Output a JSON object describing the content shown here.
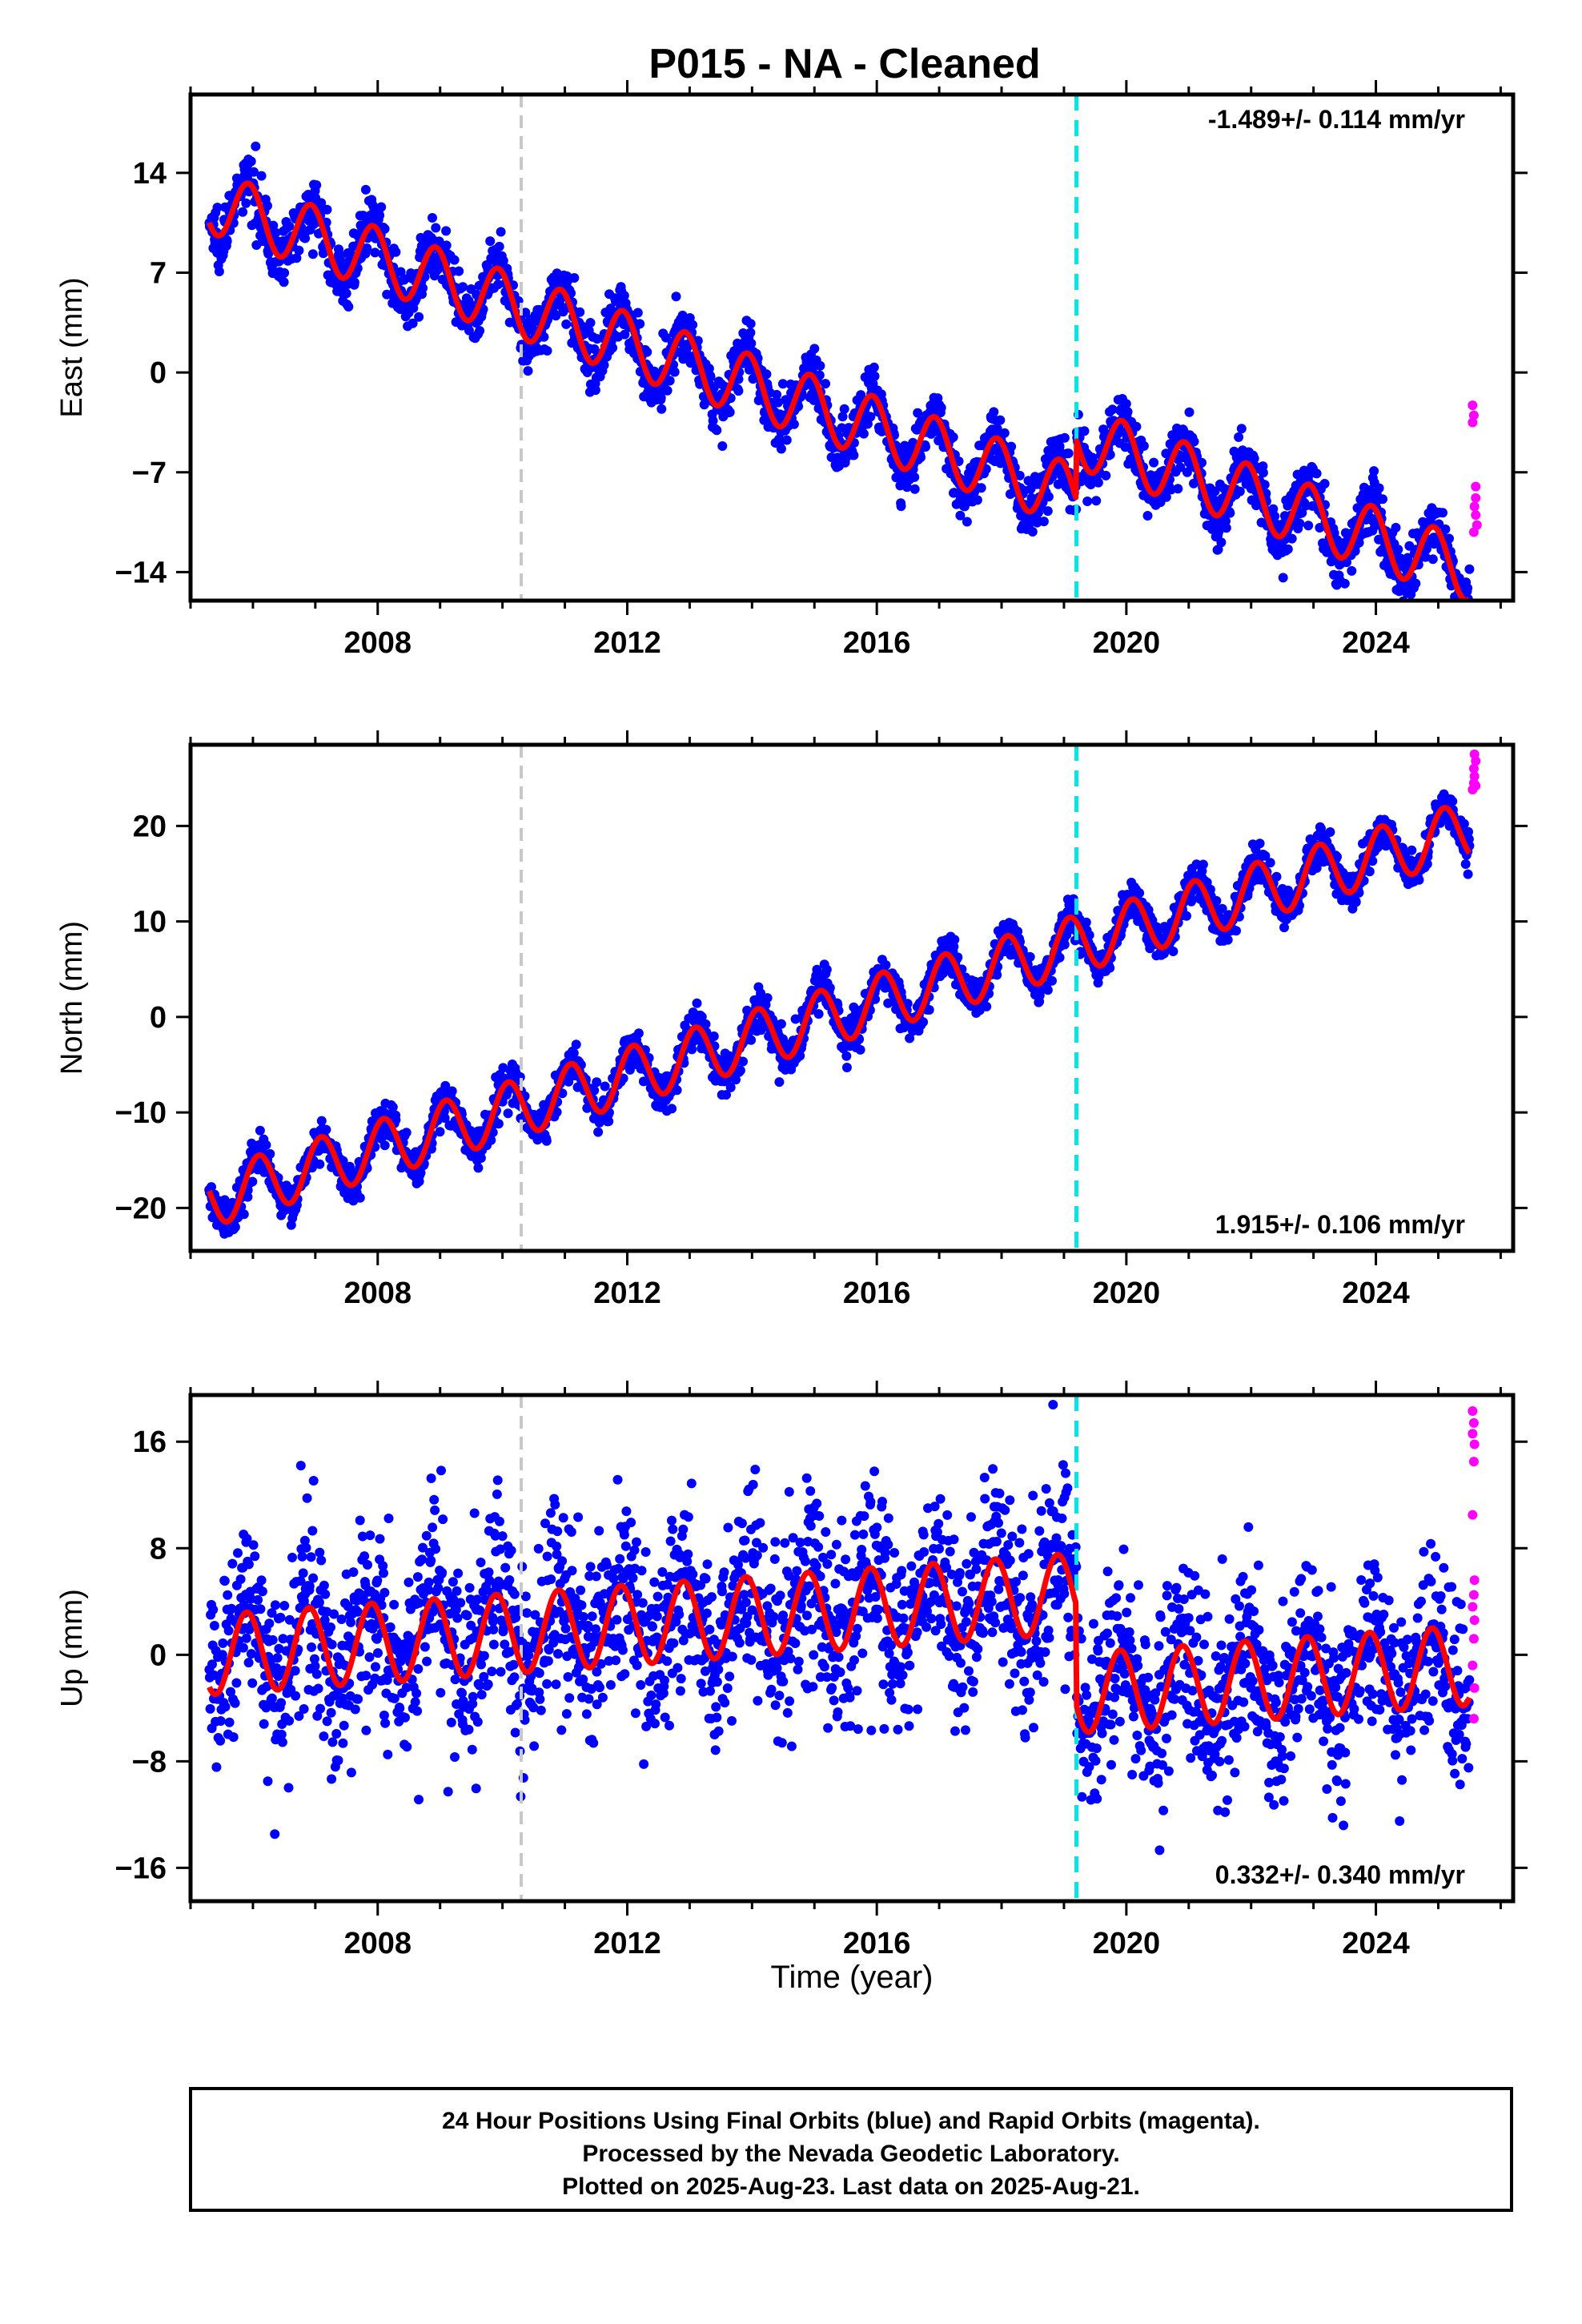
{
  "figure": {
    "title": "P015  - NA - Cleaned",
    "xlabel": "Time (year)",
    "footer": [
      "24 Hour Positions Using Final Orbits (blue) and Rapid Orbits (magenta).",
      "Processed by the Nevada Geodetic Laboratory.",
      "Plotted on 2025-Aug-23. Last data on 2025-Aug-21."
    ]
  },
  "colors": {
    "final_orbits": "#0000ff",
    "rapid_orbits": "#ff00ff",
    "model": "#ff0000",
    "event_gray": "#c8c8c8",
    "event_cyan": "#00e5e5"
  },
  "chart_data": [
    {
      "type": "scatter",
      "ylabel": "East (mm)",
      "xlim": [
        2005.0,
        2026.2
      ],
      "ylim": [
        -16,
        19.5
      ],
      "xticks": [
        2008,
        2012,
        2016,
        2020,
        2024
      ],
      "xtick_labels": [
        "2008",
        "2012",
        "2016",
        "2020",
        "2024"
      ],
      "yticks": [
        -14,
        -7,
        0,
        7,
        14
      ],
      "ytick_labels": [
        "−14",
        "−7",
        "0",
        "7",
        "14"
      ],
      "rate_label": "-1.489+/- 0.114 mm/yr",
      "rate_position": "top-right",
      "vlines": [
        {
          "x": 2010.3,
          "color": "gray"
        },
        {
          "x": 2019.2,
          "color": "cyan"
        }
      ],
      "model": {
        "trend": -1.489,
        "x0": 2005.3,
        "y0": 12.0,
        "annual_amplitude": 2.2,
        "phase": 2.0,
        "offsets": [
          {
            "x": 2019.2,
            "value": 4.2
          }
        ]
      },
      "scatter_sd": 1.0,
      "rapid": [
        [
          2025.55,
          -2.3
        ],
        [
          2025.57,
          -3.0
        ],
        [
          2025.55,
          -3.5
        ],
        [
          2025.6,
          -8.0
        ],
        [
          2025.6,
          -8.8
        ],
        [
          2025.58,
          -9.4
        ],
        [
          2025.6,
          -10.0
        ],
        [
          2025.62,
          -10.7
        ],
        [
          2025.57,
          -11.2
        ]
      ]
    },
    {
      "type": "scatter",
      "ylabel": "North (mm)",
      "xlim": [
        2005.0,
        2026.2
      ],
      "ylim": [
        -24.5,
        28.5
      ],
      "xticks": [
        2008,
        2012,
        2016,
        2020,
        2024
      ],
      "xtick_labels": [
        "2008",
        "2012",
        "2016",
        "2020",
        "2024"
      ],
      "yticks": [
        -20,
        -10,
        0,
        10,
        20
      ],
      "ytick_labels": [
        "−20",
        "−10",
        "0",
        "10",
        "20"
      ],
      "rate_label": "1.915+/- 0.106 mm/yr",
      "rate_position": "bottom-right",
      "vlines": [
        {
          "x": 2010.3,
          "color": "gray"
        },
        {
          "x": 2019.2,
          "color": "cyan"
        }
      ],
      "model": {
        "trend": 1.915,
        "x0": 2005.3,
        "y0": -19.0,
        "annual_amplitude": 3.0,
        "phase": 1.0,
        "offsets": []
      },
      "scatter_sd": 1.0,
      "rapid": [
        [
          2025.55,
          23.8
        ],
        [
          2025.57,
          24.5
        ],
        [
          2025.58,
          25.2
        ],
        [
          2025.57,
          26.0
        ],
        [
          2025.6,
          26.8
        ],
        [
          2025.58,
          27.5
        ],
        [
          2025.6,
          24.2
        ]
      ]
    },
    {
      "type": "scatter",
      "ylabel": "Up (mm)",
      "xlim": [
        2005.0,
        2026.2
      ],
      "ylim": [
        -18.5,
        19.5
      ],
      "xticks": [
        2008,
        2012,
        2016,
        2020,
        2024
      ],
      "xtick_labels": [
        "2008",
        "2012",
        "2016",
        "2020",
        "2024"
      ],
      "yticks": [
        -16,
        -8,
        0,
        8,
        16
      ],
      "ytick_labels": [
        "−16",
        "−8",
        "0",
        "8",
        "16"
      ],
      "rate_label": "0.332+/- 0.340 mm/yr",
      "rate_position": "bottom-right",
      "vlines": [
        {
          "x": 2010.3,
          "color": "gray"
        },
        {
          "x": 2019.2,
          "color": "cyan"
        }
      ],
      "model": {
        "trend": 0.332,
        "x0": 2005.3,
        "y0": 0.0,
        "annual_amplitude": 3.0,
        "phase": 2.2,
        "offsets": [
          {
            "x": 2019.2,
            "value": -7.5
          }
        ]
      },
      "scatter_sd": 3.5,
      "rapid": [
        [
          2025.55,
          18.3
        ],
        [
          2025.57,
          17.4
        ],
        [
          2025.55,
          16.6
        ],
        [
          2025.58,
          15.8
        ],
        [
          2025.57,
          14.5
        ],
        [
          2025.55,
          10.5
        ],
        [
          2025.58,
          5.6
        ],
        [
          2025.57,
          4.5
        ],
        [
          2025.55,
          3.6
        ],
        [
          2025.58,
          2.6
        ],
        [
          2025.57,
          1.2
        ],
        [
          2025.55,
          -0.8
        ],
        [
          2025.58,
          -2.5
        ],
        [
          2025.57,
          -4.8
        ]
      ]
    }
  ]
}
